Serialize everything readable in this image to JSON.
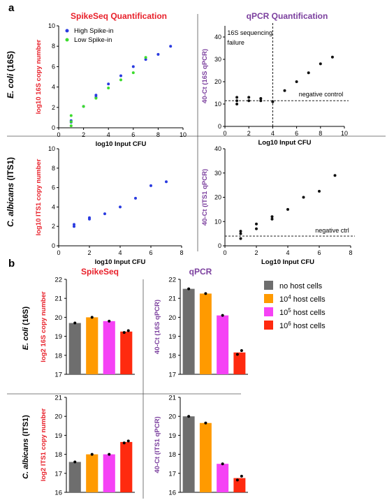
{
  "panel_a_label": "a",
  "panel_b_label": "b",
  "col_titles": {
    "spikeseq_quant": "SpikeSeq Quantification",
    "qpcr_quant": "qPCR Quantification",
    "spikeseq": "SpikeSeq",
    "qpcr": "qPCR"
  },
  "row_labels": {
    "ecoli_italic": "E. coli",
    "ecoli_rest": " (16S)",
    "calb_italic": "C. albicans",
    "calb_rest": " (ITS1)"
  },
  "colors": {
    "red_title": "#e8202a",
    "purple_title": "#7b3f9e",
    "high_spike": "#2a3be0",
    "low_spike": "#3ddc2e",
    "no_host": "#6e6e6e",
    "host_1e4": "#ff9a00",
    "host_1e5": "#f542f5",
    "host_1e6": "#ff2a0f"
  },
  "legend_b": [
    {
      "prefix": "no host cells",
      "exp": "",
      "suffix": ""
    },
    {
      "prefix": "10",
      "exp": "4",
      "suffix": " host cells"
    },
    {
      "prefix": "10",
      "exp": "5",
      "suffix": " host cells"
    },
    {
      "prefix": "10",
      "exp": "6",
      "suffix": " host cells"
    }
  ],
  "chart_data": [
    {
      "id": "a1",
      "type": "scatter",
      "xlabel": "log10 Input CFU",
      "ylabel": "log10 16S copy number",
      "xlim": [
        0,
        10
      ],
      "ylim": [
        0,
        10
      ],
      "xticks": [
        0,
        2,
        4,
        6,
        8,
        10
      ],
      "yticks": [
        0,
        2,
        4,
        6,
        8,
        10
      ],
      "legend": "top-left",
      "series": [
        {
          "name": "High Spike-in",
          "color": "#2a3be0",
          "points": [
            [
              1,
              0.7
            ],
            [
              1,
              0.55
            ],
            [
              2,
              2.1
            ],
            [
              3,
              3.2
            ],
            [
              3,
              3.0
            ],
            [
              4,
              4.3
            ],
            [
              5,
              5.1
            ],
            [
              6,
              6.0
            ],
            [
              7,
              6.7
            ],
            [
              8,
              7.2
            ],
            [
              9,
              8.0
            ]
          ]
        },
        {
          "name": "Low Spike-in",
          "color": "#3ddc2e",
          "points": [
            [
              1,
              1.2
            ],
            [
              1,
              0.6
            ],
            [
              1,
              0.2
            ],
            [
              2,
              2.1
            ],
            [
              3,
              2.9
            ],
            [
              4,
              3.9
            ],
            [
              5,
              4.7
            ],
            [
              6,
              5.4
            ],
            [
              7,
              6.9
            ]
          ]
        }
      ]
    },
    {
      "id": "a2",
      "type": "scatter",
      "xlabel": "Log10 Input CFU",
      "ylabel": "40-Ct (16S qPCR)",
      "xlim": [
        0,
        10
      ],
      "ylim": [
        0,
        45
      ],
      "xticks": [
        0,
        2,
        4,
        6,
        8,
        10
      ],
      "yticks": [
        0,
        10,
        20,
        30,
        40
      ],
      "vline": 4,
      "hline": 11.5,
      "annotations": [
        "16S sequencing failure",
        "negative control"
      ],
      "series": [
        {
          "name": "",
          "color": "#111111",
          "points": [
            [
              1,
              13
            ],
            [
              1,
              11.5
            ],
            [
              1,
              10
            ],
            [
              2,
              13
            ],
            [
              2,
              11.5
            ],
            [
              3,
              12.5
            ],
            [
              3,
              11.5
            ],
            [
              4,
              11
            ],
            [
              5,
              16
            ],
            [
              6,
              20
            ],
            [
              7,
              24
            ],
            [
              8,
              28
            ],
            [
              9,
              31
            ]
          ]
        }
      ]
    },
    {
      "id": "a3",
      "type": "scatter",
      "xlabel": "log10 Input CFU",
      "ylabel": "log10 ITS1 copy number",
      "xlim": [
        0,
        8
      ],
      "ylim": [
        0,
        10
      ],
      "xticks": [
        0,
        2,
        4,
        6,
        8
      ],
      "yticks": [
        0,
        2,
        4,
        6,
        8,
        10
      ],
      "series": [
        {
          "name": "",
          "color": "#2a3be0",
          "points": [
            [
              1,
              2.2
            ],
            [
              1,
              2.0
            ],
            [
              2,
              2.9
            ],
            [
              2,
              2.75
            ],
            [
              3,
              3.3
            ],
            [
              4,
              4.0
            ],
            [
              5,
              4.9
            ],
            [
              6,
              6.2
            ],
            [
              7,
              6.6
            ]
          ]
        }
      ]
    },
    {
      "id": "a4",
      "type": "scatter",
      "xlabel": "Log10 Input CFU",
      "ylabel": "40-Ct (ITS1 qPCR)",
      "xlim": [
        0,
        8
      ],
      "ylim": [
        0,
        40
      ],
      "xticks": [
        0,
        2,
        4,
        6,
        8
      ],
      "yticks": [
        0,
        10,
        20,
        30,
        40
      ],
      "hline": 4,
      "annotations": [
        "negative ctrl"
      ],
      "series": [
        {
          "name": "",
          "color": "#111111",
          "points": [
            [
              1,
              6
            ],
            [
              1,
              5
            ],
            [
              1,
              3
            ],
            [
              2,
              9
            ],
            [
              2,
              7
            ],
            [
              3,
              12
            ],
            [
              3,
              11
            ],
            [
              4,
              15
            ],
            [
              5,
              20
            ],
            [
              6,
              22.5
            ],
            [
              7,
              29
            ]
          ]
        }
      ]
    },
    {
      "id": "b1",
      "type": "bar",
      "ylabel": "log2 16S copy number",
      "categories": [
        "no host cells",
        "10^4 host cells",
        "10^5 host cells",
        "10^6 host cells"
      ],
      "values": [
        19.7,
        20.0,
        19.8,
        19.25
      ],
      "points": [
        [
          19.7
        ],
        [
          20.0
        ],
        [
          19.8
        ],
        [
          19.2,
          19.3
        ]
      ],
      "ylim": [
        17,
        22
      ],
      "yticks": [
        17,
        18,
        19,
        20,
        21,
        22
      ]
    },
    {
      "id": "b2",
      "type": "bar",
      "ylabel": "40-Ct (16S qPCR)",
      "categories": [
        "no host cells",
        "10^4 host cells",
        "10^5 host cells",
        "10^6 host cells"
      ],
      "values": [
        21.5,
        21.25,
        20.1,
        18.15
      ],
      "points": [
        [
          21.5
        ],
        [
          21.25
        ],
        [
          20.1
        ],
        [
          18.05,
          18.25
        ]
      ],
      "ylim": [
        17,
        22
      ],
      "yticks": [
        17,
        18,
        19,
        20,
        21,
        22
      ]
    },
    {
      "id": "b3",
      "type": "bar",
      "ylabel": "log2 ITS1 copy number",
      "categories": [
        "no host cells",
        "10^4 host cells",
        "10^5 host cells",
        "10^6 host cells"
      ],
      "values": [
        17.6,
        18.0,
        18.0,
        18.65
      ],
      "points": [
        [
          17.6
        ],
        [
          18.0
        ],
        [
          18.0
        ],
        [
          18.6,
          18.7
        ]
      ],
      "ylim": [
        16,
        21
      ],
      "yticks": [
        16,
        17,
        18,
        19,
        20,
        21
      ]
    },
    {
      "id": "b4",
      "type": "bar",
      "ylabel": "40-Ct (ITS1 qPCR)",
      "categories": [
        "no host cells",
        "10^4 host cells",
        "10^5 host cells",
        "10^6 host cells"
      ],
      "values": [
        20.0,
        19.65,
        17.5,
        16.75
      ],
      "points": [
        [
          20.0
        ],
        [
          19.65
        ],
        [
          17.5
        ],
        [
          16.65,
          16.85
        ]
      ],
      "ylim": [
        16,
        21
      ],
      "yticks": [
        16,
        17,
        18,
        19,
        20,
        21
      ]
    }
  ]
}
